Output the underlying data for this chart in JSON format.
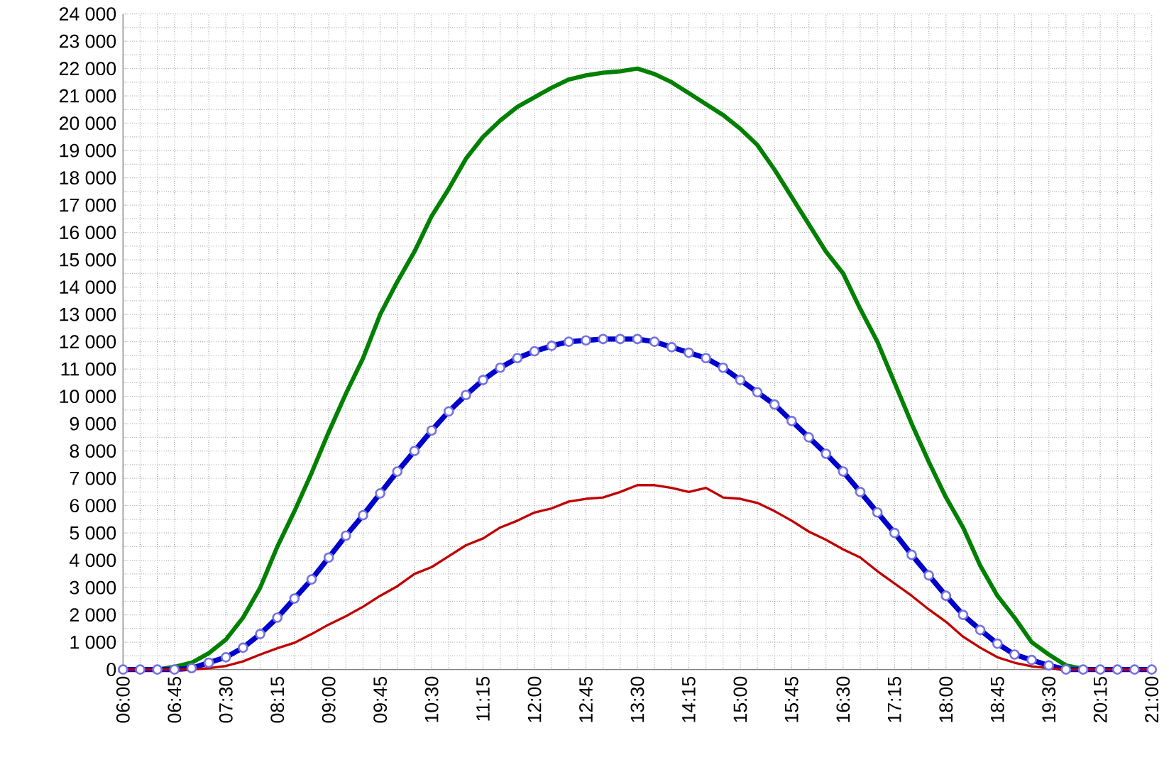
{
  "chart_data": {
    "type": "line",
    "x": [
      6,
      6.25,
      6.5,
      6.75,
      7,
      7.25,
      7.5,
      7.75,
      8,
      8.25,
      8.5,
      8.75,
      9,
      9.25,
      9.5,
      9.75,
      10,
      10.25,
      10.5,
      10.75,
      11,
      11.25,
      11.5,
      11.75,
      12,
      12.25,
      12.5,
      12.75,
      13,
      13.25,
      13.5,
      13.75,
      14,
      14.25,
      14.5,
      14.75,
      15,
      15.25,
      15.5,
      15.75,
      16,
      16.25,
      16.5,
      16.75,
      17,
      17.25,
      17.5,
      17.75,
      18,
      18.25,
      18.5,
      18.75,
      19,
      19.25,
      19.5,
      19.75,
      20,
      20.25,
      20.5,
      20.75,
      21
    ],
    "series": [
      {
        "color": "#008000",
        "marker": "none",
        "values": [
          0,
          0,
          0,
          100,
          250,
          600,
          1100,
          1900,
          3000,
          4500,
          5800,
          7200,
          8700,
          10100,
          11400,
          13000,
          14200,
          15300,
          16600,
          17600,
          18700,
          19500,
          20100,
          20600,
          20950,
          21300,
          21600,
          21750,
          21850,
          21900,
          22000,
          21800,
          21500,
          21100,
          20700,
          20300,
          19800,
          19200,
          18300,
          17300,
          16300,
          15300,
          14500,
          13200,
          12000,
          10500,
          9000,
          7600,
          6300,
          5200,
          3800,
          2700,
          1900,
          1000,
          550,
          150,
          30,
          0,
          null,
          null,
          null
        ]
      },
      {
        "color": "#0000cc",
        "marker": "circle",
        "values": [
          0,
          0,
          0,
          0,
          50,
          250,
          450,
          800,
          1300,
          1900,
          2600,
          3300,
          4100,
          4900,
          5650,
          6450,
          7250,
          8000,
          8750,
          9450,
          10050,
          10600,
          11050,
          11400,
          11650,
          11850,
          12000,
          12050,
          12100,
          12100,
          12100,
          12000,
          11800,
          11600,
          11400,
          11050,
          10600,
          10150,
          9700,
          9100,
          8500,
          7900,
          7250,
          6500,
          5750,
          5000,
          4200,
          3450,
          2700,
          2000,
          1450,
          950,
          550,
          350,
          150,
          0,
          0,
          0,
          0,
          0,
          0
        ]
      },
      {
        "color": "#c00000",
        "marker": "none",
        "values": [
          0,
          0,
          0,
          0,
          0,
          50,
          130,
          300,
          550,
          780,
          980,
          1300,
          1650,
          1950,
          2300,
          2700,
          3050,
          3500,
          3750,
          4150,
          4550,
          4800,
          5200,
          5450,
          5750,
          5900,
          6150,
          6250,
          6300,
          6500,
          6750,
          6750,
          6650,
          6500,
          6650,
          6300,
          6250,
          6100,
          5800,
          5450,
          5050,
          4750,
          4400,
          4100,
          3600,
          3150,
          2700,
          2200,
          1750,
          1200,
          800,
          450,
          250,
          120,
          50,
          0,
          0,
          0,
          0,
          0,
          0
        ]
      }
    ],
    "xlim": [
      6,
      21
    ],
    "xticks": [
      {
        "value": 6,
        "label": "06:00"
      },
      {
        "value": 6.75,
        "label": "06:45"
      },
      {
        "value": 7.5,
        "label": "07:30"
      },
      {
        "value": 8.25,
        "label": "08:15"
      },
      {
        "value": 9,
        "label": "09:00"
      },
      {
        "value": 9.75,
        "label": "09:45"
      },
      {
        "value": 10.5,
        "label": "10:30"
      },
      {
        "value": 11.25,
        "label": "11:15"
      },
      {
        "value": 12,
        "label": "12:00"
      },
      {
        "value": 12.75,
        "label": "12:45"
      },
      {
        "value": 13.5,
        "label": "13:30"
      },
      {
        "value": 14.25,
        "label": "14:15"
      },
      {
        "value": 15,
        "label": "15:00"
      },
      {
        "value": 15.75,
        "label": "15:45"
      },
      {
        "value": 16.5,
        "label": "16:30"
      },
      {
        "value": 17.25,
        "label": "17:15"
      },
      {
        "value": 18,
        "label": "18:00"
      },
      {
        "value": 18.75,
        "label": "18:45"
      },
      {
        "value": 19.5,
        "label": "19:30"
      },
      {
        "value": 20.25,
        "label": "20:15"
      },
      {
        "value": 21,
        "label": "21:00"
      }
    ],
    "ylim": [
      0,
      24000
    ],
    "yticks": [
      0,
      {
        "value": 1000,
        "label": "1 000"
      },
      {
        "value": 2000,
        "label": "2 000"
      },
      {
        "value": 3000,
        "label": "3 000"
      },
      {
        "value": 4000,
        "label": "4 000"
      },
      {
        "value": 5000,
        "label": "5 000"
      },
      {
        "value": 6000,
        "label": "6 000"
      },
      {
        "value": 7000,
        "label": "7 000"
      },
      {
        "value": 8000,
        "label": "8 000"
      },
      {
        "value": 9000,
        "label": "9 000"
      },
      {
        "value": 10000,
        "label": "10 000"
      },
      {
        "value": 11000,
        "label": "11 000"
      },
      {
        "value": 12000,
        "label": "12 000"
      },
      {
        "value": 13000,
        "label": "13 000"
      },
      {
        "value": 14000,
        "label": "14 000"
      },
      {
        "value": 15000,
        "label": "15 000"
      },
      {
        "value": 16000,
        "label": "16 000"
      },
      {
        "value": 17000,
        "label": "17 000"
      },
      {
        "value": 18000,
        "label": "18 000"
      },
      {
        "value": 19000,
        "label": "19 000"
      },
      {
        "value": 20000,
        "label": "20 000"
      },
      {
        "value": 21000,
        "label": "21 000"
      },
      {
        "value": 22000,
        "label": "22 000"
      },
      {
        "value": 23000,
        "label": "23 000"
      },
      {
        "value": 24000,
        "label": "24 000"
      }
    ],
    "grid": true
  }
}
